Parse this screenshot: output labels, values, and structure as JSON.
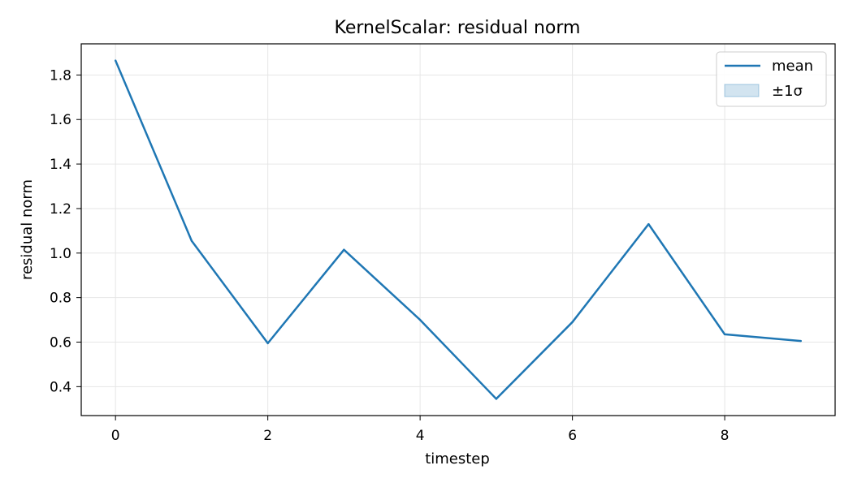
{
  "chart_data": {
    "type": "line",
    "title": "KernelScalar: residual norm",
    "xlabel": "timestep",
    "ylabel": "residual norm",
    "x": [
      0,
      1,
      2,
      3,
      4,
      5,
      6,
      7,
      8,
      9
    ],
    "series": [
      {
        "name": "mean",
        "values": [
          1.865,
          1.055,
          0.595,
          1.015,
          0.7,
          0.345,
          0.69,
          1.13,
          0.635,
          0.605
        ],
        "color": "#1f77b4"
      }
    ],
    "band": {
      "name": "±1σ",
      "color": "#1f77b4",
      "lower": [],
      "upper": []
    },
    "xticks": [
      0,
      2,
      4,
      6,
      8
    ],
    "yticks": [
      0.4,
      0.6,
      0.8,
      1.0,
      1.2,
      1.4,
      1.6,
      1.8
    ],
    "xlim": [
      -0.45,
      9.45
    ],
    "ylim": [
      0.27,
      1.94
    ],
    "grid": true,
    "legend_position": "top-right"
  }
}
